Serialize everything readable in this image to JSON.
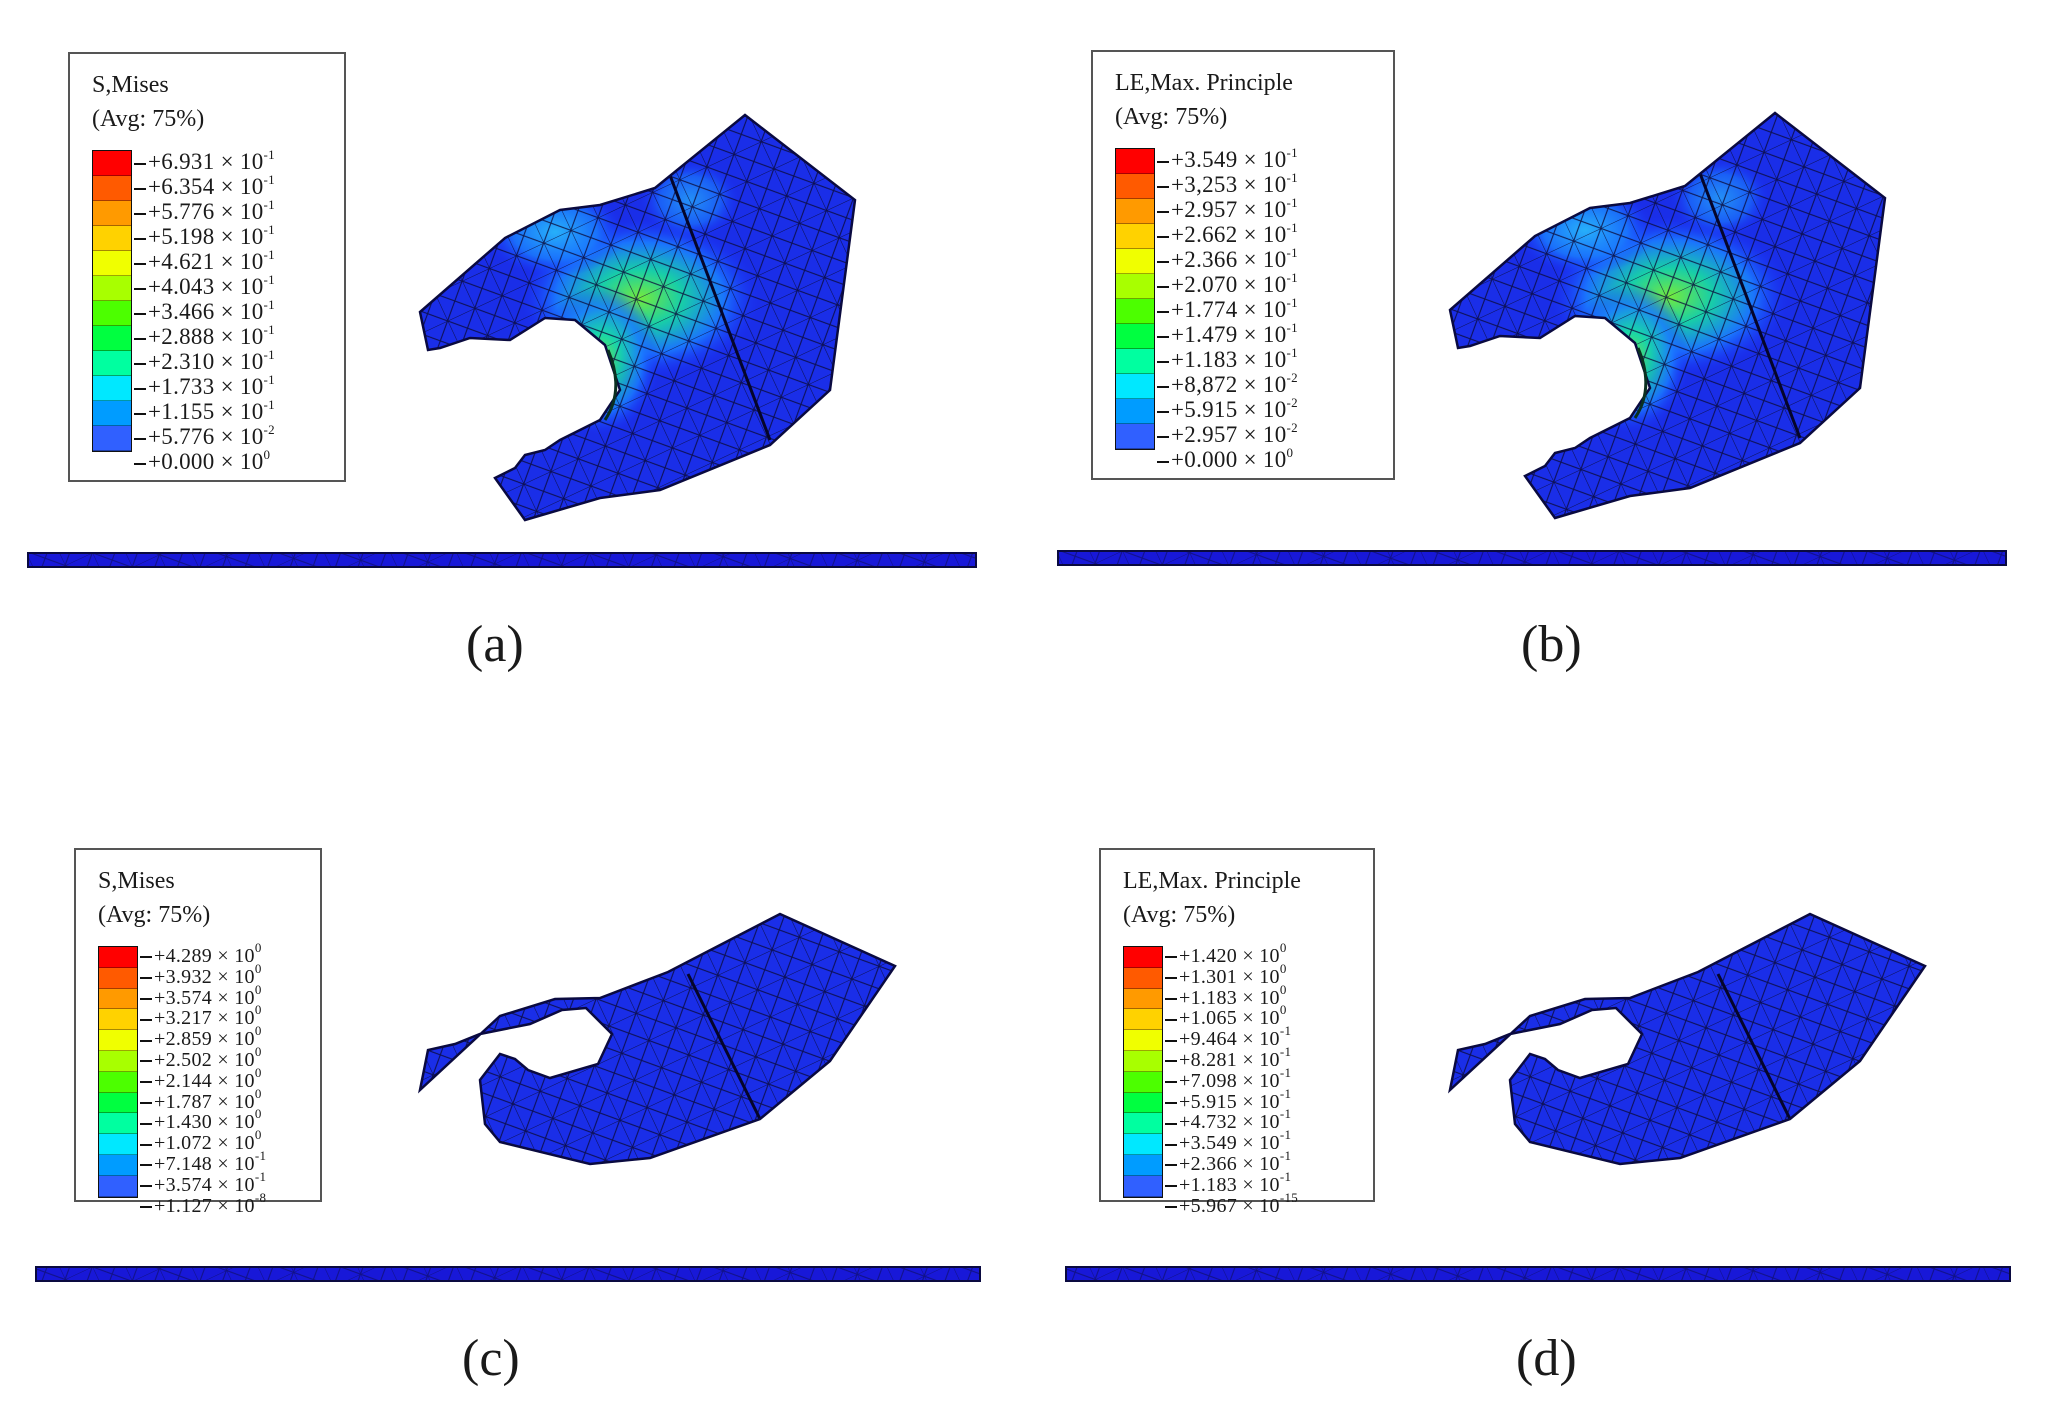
{
  "panels": [
    {
      "id": "a",
      "caption": "(a)",
      "legend_title": [
        "S,Mises",
        "(Avg: 75%)"
      ],
      "legend_values": [
        {
          "m": "+6.931",
          "e": "-1"
        },
        {
          "m": "+6.354",
          "e": "-1"
        },
        {
          "m": "+5.776",
          "e": "-1"
        },
        {
          "m": "+5.198",
          "e": "-1"
        },
        {
          "m": "+4.621",
          "e": "-1"
        },
        {
          "m": "+4.043",
          "e": "-1"
        },
        {
          "m": "+3.466",
          "e": "-1"
        },
        {
          "m": "+2.888",
          "e": "-1"
        },
        {
          "m": "+2.310",
          "e": "-1"
        },
        {
          "m": "+1.733",
          "e": "-1"
        },
        {
          "m": "+1.155",
          "e": "-1"
        },
        {
          "m": "+5.776",
          "e": "-2"
        },
        {
          "m": "+0.000",
          "e": "0"
        }
      ],
      "contour": "high"
    },
    {
      "id": "b",
      "caption": "(b)",
      "legend_title": [
        "LE,Max. Principle",
        "(Avg: 75%)"
      ],
      "legend_values": [
        {
          "m": "+3.549",
          "e": "-1"
        },
        {
          "m": "+3,253",
          "e": "-1"
        },
        {
          "m": "+2.957",
          "e": "-1"
        },
        {
          "m": "+2.662",
          "e": "-1"
        },
        {
          "m": "+2.366",
          "e": "-1"
        },
        {
          "m": "+2.070",
          "e": "-1"
        },
        {
          "m": "+1.774",
          "e": "-1"
        },
        {
          "m": "+1.479",
          "e": "-1"
        },
        {
          "m": "+1.183",
          "e": "-1"
        },
        {
          "m": "+8,872",
          "e": "-2"
        },
        {
          "m": "+5.915",
          "e": "-2"
        },
        {
          "m": "+2.957",
          "e": "-2"
        },
        {
          "m": "+0.000",
          "e": "0"
        }
      ],
      "contour": "high"
    },
    {
      "id": "c",
      "caption": "(c)",
      "legend_title": [
        "S,Mises",
        "(Avg: 75%)"
      ],
      "legend_values": [
        {
          "m": "+4.289",
          "e": "0"
        },
        {
          "m": "+3.932",
          "e": "0"
        },
        {
          "m": "+3.574",
          "e": "0"
        },
        {
          "m": "+3.217",
          "e": "0"
        },
        {
          "m": "+2.859",
          "e": "0"
        },
        {
          "m": "+2.502",
          "e": "0"
        },
        {
          "m": "+2.144",
          "e": "0"
        },
        {
          "m": "+1.787",
          "e": "0"
        },
        {
          "m": "+1.430",
          "e": "0"
        },
        {
          "m": "+1.072",
          "e": "0"
        },
        {
          "m": "+7.148",
          "e": "-1"
        },
        {
          "m": "+3.574",
          "e": "-1"
        },
        {
          "m": "+1.127",
          "e": "-8"
        }
      ],
      "contour": "low"
    },
    {
      "id": "d",
      "caption": "(d)",
      "legend_title": [
        "LE,Max. Principle",
        "(Avg: 75%)"
      ],
      "legend_values": [
        {
          "m": "+1.420",
          "e": "0"
        },
        {
          "m": "+1.301",
          "e": "0"
        },
        {
          "m": "+1.183",
          "e": "0"
        },
        {
          "m": "+1.065",
          "e": "0"
        },
        {
          "m": "+9.464",
          "e": "-1"
        },
        {
          "m": "+8.281",
          "e": "-1"
        },
        {
          "m": "+7.098",
          "e": "-1"
        },
        {
          "m": "+5.915",
          "e": "-1"
        },
        {
          "m": "+4.732",
          "e": "-1"
        },
        {
          "m": "+3.549",
          "e": "-1"
        },
        {
          "m": "+2.366",
          "e": "-1"
        },
        {
          "m": "+1.183",
          "e": "-1"
        },
        {
          "m": "+5.967",
          "e": "-15"
        }
      ],
      "contour": "low"
    }
  ],
  "times_symbol": "×",
  "base": "10",
  "colorbar": [
    "#ff0000",
    "#ff5a00",
    "#ff9a00",
    "#ffd200",
    "#f0ff00",
    "#a8ff00",
    "#4cff00",
    "#00ff40",
    "#00ffa0",
    "#00e8ff",
    "#009cff",
    "#3060ff",
    "#0000ff"
  ]
}
